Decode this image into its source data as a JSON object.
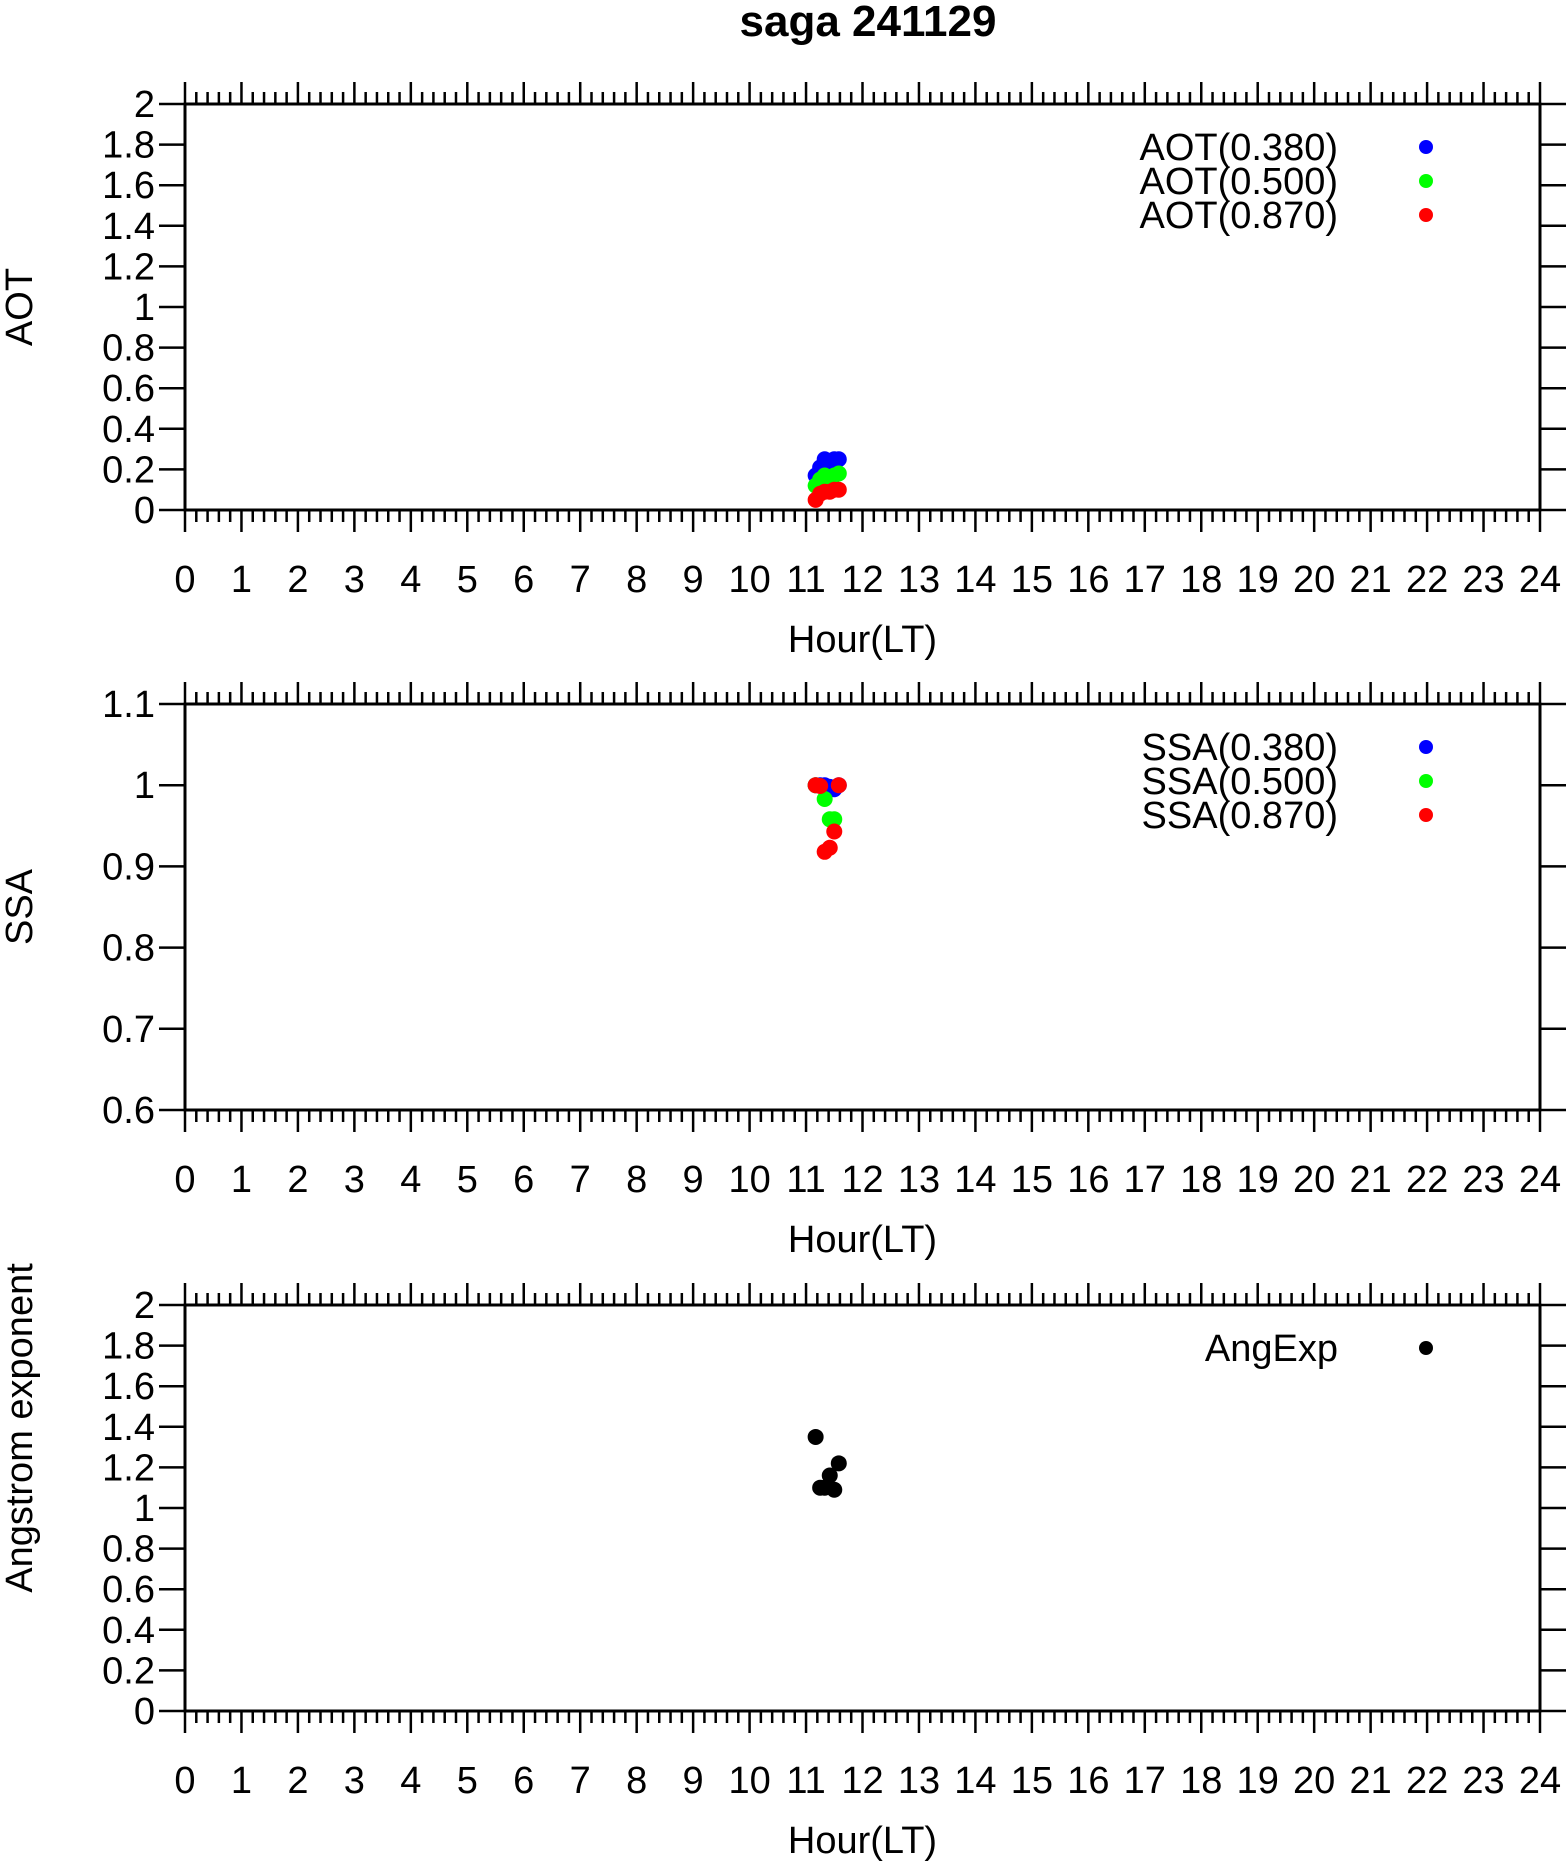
{
  "title": "saga 241129",
  "chart_data": [
    {
      "type": "scatter",
      "xlabel": "Hour(LT)",
      "ylabel": "AOT",
      "xlim": [
        0,
        24
      ],
      "ylim": [
        0,
        2
      ],
      "x_ticks": [
        "0",
        "1",
        "2",
        "3",
        "4",
        "5",
        "6",
        "7",
        "8",
        "9",
        "10",
        "11",
        "12",
        "13",
        "14",
        "15",
        "16",
        "17",
        "18",
        "19",
        "20",
        "21",
        "22",
        "23",
        "24"
      ],
      "y_ticks": [
        "0",
        "0.2",
        "0.4",
        "0.6",
        "0.8",
        "1",
        "1.2",
        "1.4",
        "1.6",
        "1.8",
        "2"
      ],
      "legend_position": "top-right",
      "series": [
        {
          "name": "AOT(0.380)",
          "color": "#0000ff",
          "x": [
            11.17,
            11.25,
            11.33,
            11.42,
            11.5,
            11.58
          ],
          "y": [
            0.17,
            0.21,
            0.25,
            0.23,
            0.25,
            0.25
          ]
        },
        {
          "name": "AOT(0.500)",
          "color": "#00ff00",
          "x": [
            11.17,
            11.25,
            11.33,
            11.42,
            11.5,
            11.58
          ],
          "y": [
            0.12,
            0.15,
            0.17,
            0.16,
            0.17,
            0.18
          ]
        },
        {
          "name": "AOT(0.870)",
          "color": "#ff0000",
          "x": [
            11.17,
            11.25,
            11.33,
            11.42,
            11.5,
            11.58
          ],
          "y": [
            0.05,
            0.08,
            0.09,
            0.09,
            0.1,
            0.1
          ]
        }
      ]
    },
    {
      "type": "scatter",
      "xlabel": "Hour(LT)",
      "ylabel": "SSA",
      "xlim": [
        0,
        24
      ],
      "ylim": [
        0.6,
        1.1
      ],
      "x_ticks": [
        "0",
        "1",
        "2",
        "3",
        "4",
        "5",
        "6",
        "7",
        "8",
        "9",
        "10",
        "11",
        "12",
        "13",
        "14",
        "15",
        "16",
        "17",
        "18",
        "19",
        "20",
        "21",
        "22",
        "23",
        "24"
      ],
      "y_ticks": [
        "0.6",
        "0.7",
        "0.8",
        "0.9",
        "1",
        "1.1"
      ],
      "legend_position": "top-right",
      "series": [
        {
          "name": "SSA(0.380)",
          "color": "#0000ff",
          "x": [
            11.17,
            11.25,
            11.33,
            11.42,
            11.5,
            11.58
          ],
          "y": [
            1.0,
            1.0,
            1.0,
            0.998,
            0.995,
            1.0
          ]
        },
        {
          "name": "SSA(0.500)",
          "color": "#00ff00",
          "x": [
            11.17,
            11.33,
            11.42,
            11.5
          ],
          "y": [
            1.0,
            0.983,
            0.958,
            0.958
          ]
        },
        {
          "name": "SSA(0.870)",
          "color": "#ff0000",
          "x": [
            11.17,
            11.25,
            11.33,
            11.42,
            11.5,
            11.58
          ],
          "y": [
            1.0,
            0.999,
            0.918,
            0.923,
            0.943,
            1.0
          ]
        }
      ]
    },
    {
      "type": "scatter",
      "xlabel": "Hour(LT)",
      "ylabel": "Angstrom exponent",
      "xlim": [
        0,
        24
      ],
      "ylim": [
        0,
        2
      ],
      "x_ticks": [
        "0",
        "1",
        "2",
        "3",
        "4",
        "5",
        "6",
        "7",
        "8",
        "9",
        "10",
        "11",
        "12",
        "13",
        "14",
        "15",
        "16",
        "17",
        "18",
        "19",
        "20",
        "21",
        "22",
        "23",
        "24"
      ],
      "y_ticks": [
        "0",
        "0.2",
        "0.4",
        "0.6",
        "0.8",
        "1",
        "1.2",
        "1.4",
        "1.6",
        "1.8",
        "2"
      ],
      "legend_position": "top-right",
      "series": [
        {
          "name": "AngExp",
          "color": "#000000",
          "x": [
            11.17,
            11.25,
            11.33,
            11.42,
            11.5,
            11.58
          ],
          "y": [
            1.35,
            1.1,
            1.1,
            1.16,
            1.09,
            1.22
          ]
        }
      ]
    }
  ]
}
